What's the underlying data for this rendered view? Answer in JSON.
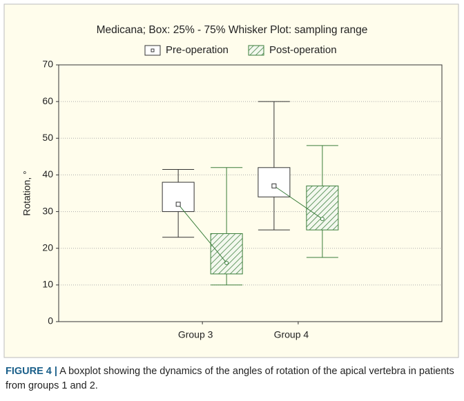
{
  "chart_data": {
    "type": "box",
    "title": "Medicana; Box: 25% - 75% Whisker Plot: sampling range",
    "y_label": "Rotation, °",
    "categories": [
      "Group 3",
      "Group 4"
    ],
    "ylim": [
      0,
      70
    ],
    "yticks": [
      0,
      10,
      20,
      30,
      40,
      50,
      60,
      70
    ],
    "grid": true,
    "series": [
      {
        "name": "Pre-operation",
        "color": "#333333",
        "min": [
          23,
          25
        ],
        "q1": [
          30,
          34
        ],
        "median": [
          32,
          37
        ],
        "q3": [
          38,
          42
        ],
        "max": [
          41.5,
          60
        ]
      },
      {
        "name": "Post-operation",
        "color": "#3a7d3a",
        "min": [
          10,
          17.5
        ],
        "q1": [
          13,
          25
        ],
        "median": [
          16,
          28
        ],
        "q3": [
          24,
          37
        ],
        "max": [
          42,
          48
        ]
      }
    ]
  },
  "caption": {
    "label": "FIGURE 4 |",
    "text": "A boxplot showing the dynamics of the angles of rotation of the apical vertebra in patients from groups 1 and 2."
  }
}
